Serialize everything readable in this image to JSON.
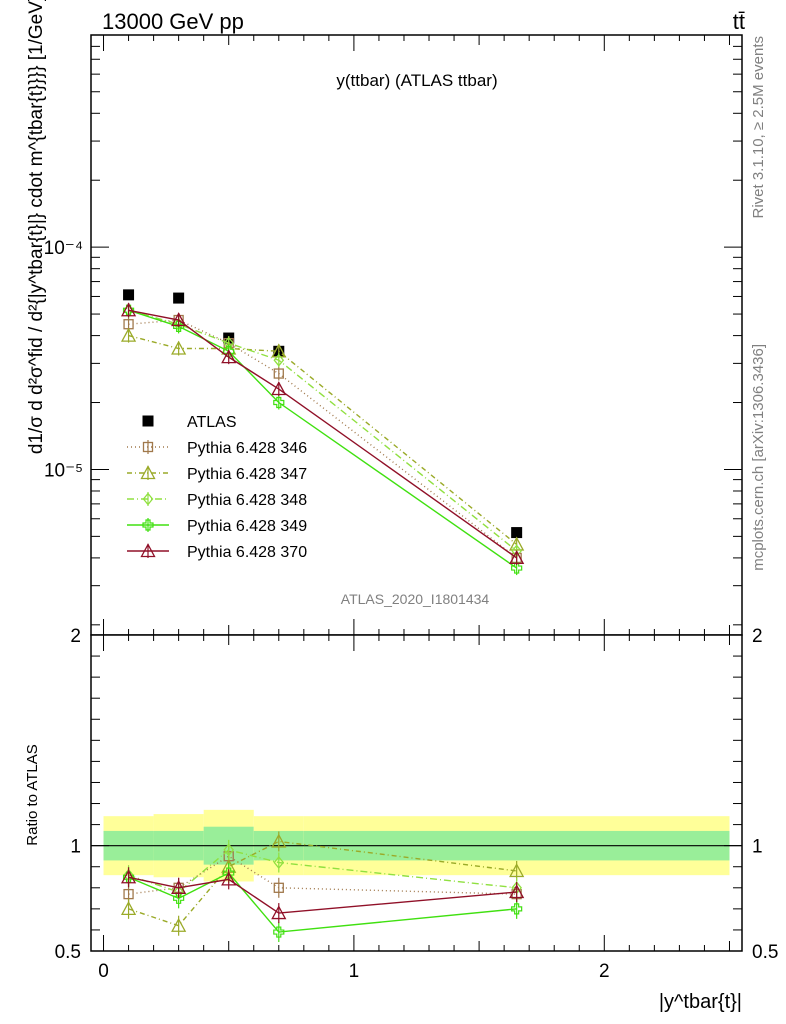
{
  "header": {
    "left": "13000 GeV pp",
    "right": "tt̄"
  },
  "side_labels": {
    "rivet": "Rivet 3.1.10, ≥ 2.5M events",
    "mcplots": "mcplots.cern.ch [arXiv:1306.3436]"
  },
  "chart_data": [
    {
      "type": "line",
      "panel": "main",
      "title": "y(ttbar) (ATLAS ttbar)",
      "watermark": "ATLAS_2020_I1801434",
      "ylabel": "d1/σ d d²σ^fid / d²{|y^tbar{t}|} cdot m^{tbar{t}}}} [1/GeV]",
      "yscale": "log",
      "ylim": [
        1.8e-06,
        0.0009
      ],
      "xlim": [
        -0.05,
        2.55
      ],
      "yticks": [
        {
          "value": 0.0001,
          "label": "10⁻⁴"
        },
        {
          "value": 1e-05,
          "label": "10⁻⁵"
        }
      ],
      "legend_position": "center-left",
      "series": [
        {
          "name": "ATLAS",
          "color": "#000000",
          "marker": "square",
          "x": [
            0.1,
            0.3,
            0.5,
            0.7,
            1.65
          ],
          "values": [
            6.1e-05,
            5.9e-05,
            3.9e-05,
            3.4e-05,
            5.2e-06
          ]
        },
        {
          "name": "Pythia 6.428 346",
          "color": "#a0784b",
          "marker": "open-square",
          "dash": "1,3",
          "x": [
            0.1,
            0.3,
            0.5,
            0.7,
            1.65
          ],
          "values": [
            4.5e-05,
            4.7e-05,
            3.7e-05,
            2.7e-05,
            4e-06
          ]
        },
        {
          "name": "Pythia 6.428 347",
          "color": "#9aaa28",
          "marker": "open-triangle",
          "dash": "5,3,1,3",
          "x": [
            0.1,
            0.3,
            0.5,
            0.7,
            1.65
          ],
          "values": [
            4e-05,
            3.5e-05,
            3.5e-05,
            3.4e-05,
            4.6e-06
          ]
        },
        {
          "name": "Pythia 6.428 348",
          "color": "#90e040",
          "marker": "open-diamond",
          "dash": "7,3,1,3",
          "x": [
            0.1,
            0.3,
            0.5,
            0.7,
            1.65
          ],
          "values": [
            5.2e-05,
            4.5e-05,
            3.7e-05,
            3.1e-05,
            4.3e-06
          ]
        },
        {
          "name": "Pythia 6.428 349",
          "color": "#40e010",
          "marker": "open-cross",
          "dash": "",
          "x": [
            0.1,
            0.3,
            0.5,
            0.7,
            1.65
          ],
          "values": [
            5.2e-05,
            4.4e-05,
            3.4e-05,
            2e-05,
            3.6e-06
          ]
        },
        {
          "name": "Pythia 6.428 370",
          "color": "#901028",
          "marker": "open-triangle",
          "dash": "",
          "x": [
            0.1,
            0.3,
            0.5,
            0.7,
            1.65
          ],
          "values": [
            5.2e-05,
            4.7e-05,
            3.2e-05,
            2.3e-05,
            4e-06
          ]
        }
      ]
    },
    {
      "type": "line",
      "panel": "ratio",
      "ylabel": "Ratio to ATLAS",
      "xlabel": "|y^tbar{t}|",
      "ylim": [
        0.5,
        2.0
      ],
      "xlim": [
        -0.05,
        2.55
      ],
      "yticks": [
        {
          "value": 0.5,
          "label": "0.5"
        },
        {
          "value": 1,
          "label": "1"
        },
        {
          "value": 2,
          "label": "2"
        }
      ],
      "xticks": [
        {
          "value": 0,
          "label": "0"
        },
        {
          "value": 1,
          "label": "1"
        },
        {
          "value": 2,
          "label": "2"
        }
      ],
      "bands": [
        {
          "x": [
            0.0,
            0.2
          ],
          "inner": [
            0.93,
            1.07
          ],
          "outer": [
            0.86,
            1.14
          ]
        },
        {
          "x": [
            0.2,
            0.4
          ],
          "inner": [
            0.93,
            1.07
          ],
          "outer": [
            0.85,
            1.15
          ]
        },
        {
          "x": [
            0.4,
            0.6
          ],
          "inner": [
            0.91,
            1.09
          ],
          "outer": [
            0.83,
            1.17
          ]
        },
        {
          "x": [
            0.6,
            0.8
          ],
          "inner": [
            0.93,
            1.07
          ],
          "outer": [
            0.86,
            1.14
          ]
        },
        {
          "x": [
            0.8,
            2.5
          ],
          "inner": [
            0.93,
            1.07
          ],
          "outer": [
            0.86,
            1.14
          ]
        }
      ],
      "series": [
        {
          "name": "Pythia 6.428 346",
          "x": [
            0.1,
            0.3,
            0.5,
            0.7,
            1.65
          ],
          "values": [
            0.77,
            0.8,
            0.95,
            0.8,
            0.77
          ]
        },
        {
          "name": "Pythia 6.428 347",
          "x": [
            0.1,
            0.3,
            0.5,
            0.7,
            1.65
          ],
          "values": [
            0.7,
            0.62,
            0.9,
            1.02,
            0.88
          ]
        },
        {
          "name": "Pythia 6.428 348",
          "x": [
            0.1,
            0.3,
            0.5,
            0.7,
            1.65
          ],
          "values": [
            0.86,
            0.78,
            0.98,
            0.92,
            0.8
          ]
        },
        {
          "name": "Pythia 6.428 349",
          "x": [
            0.1,
            0.3,
            0.5,
            0.7,
            1.65
          ],
          "values": [
            0.85,
            0.75,
            0.87,
            0.59,
            0.7
          ]
        },
        {
          "name": "Pythia 6.428 370",
          "x": [
            0.1,
            0.3,
            0.5,
            0.7,
            1.65
          ],
          "values": [
            0.85,
            0.8,
            0.84,
            0.68,
            0.78
          ]
        }
      ]
    }
  ]
}
